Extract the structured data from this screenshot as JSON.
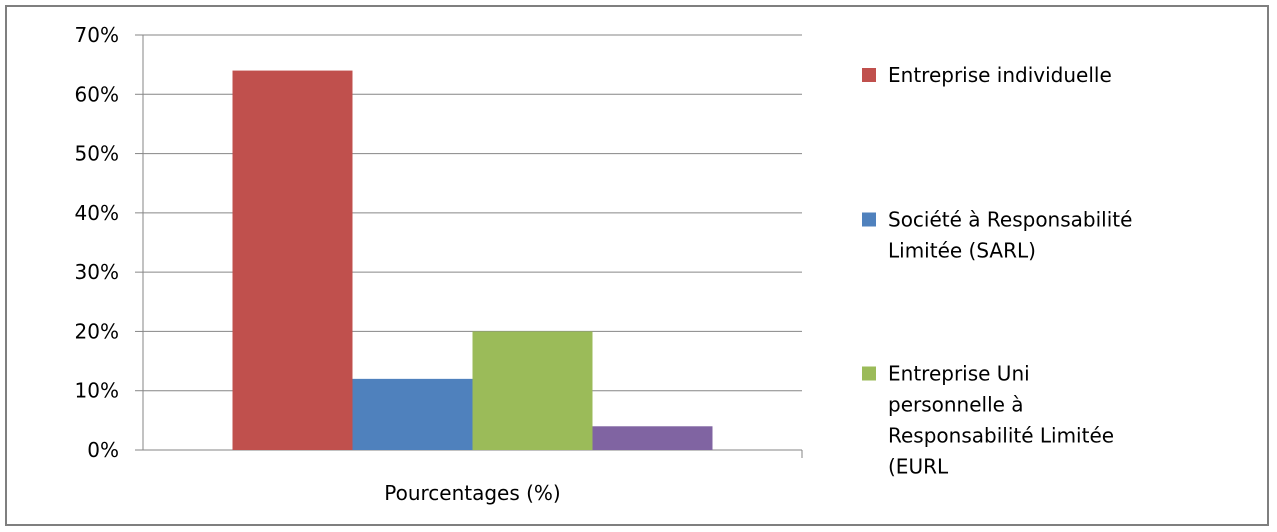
{
  "chart_data": {
    "type": "bar",
    "categories": [
      "Pourcentages (%)"
    ],
    "series": [
      {
        "name": "Entreprise individuelle",
        "values": [
          64
        ],
        "color": "#c0504d"
      },
      {
        "name": "Société à Responsabilité Limitée (SARL)",
        "values": [
          12
        ],
        "color": "#4f81bd"
      },
      {
        "name": "Entreprise Uni personnelle à Responsabilité Limitée (EURL",
        "values": [
          20
        ],
        "color": "#9bbb59"
      },
      {
        "name": "",
        "values": [
          4
        ],
        "color": "#8064a2"
      }
    ],
    "ylim": [
      0,
      70
    ],
    "y_ticks": [
      "0%",
      "10%",
      "20%",
      "30%",
      "40%",
      "50%",
      "60%",
      "70%"
    ],
    "y_tick_values": [
      0,
      10,
      20,
      30,
      40,
      50,
      60,
      70
    ],
    "unit": "%",
    "grid": true,
    "legend_position": "right"
  }
}
